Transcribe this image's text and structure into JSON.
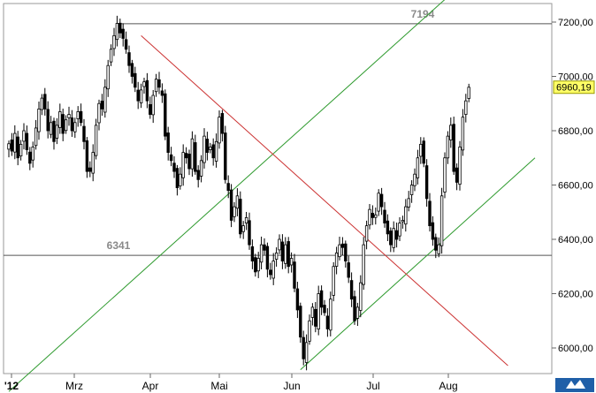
{
  "chart_data": {
    "type": "candlestick",
    "title": "",
    "xlabel": "",
    "ylabel": "",
    "ylim": [
      5920,
      7360
    ],
    "grid": false,
    "x_tick_labels": [
      "'12",
      "Mrz",
      "Apr",
      "Mai",
      "Jun",
      "Jul",
      "Aug"
    ],
    "y_ticks": [
      6000,
      6200,
      6400,
      6600,
      6800,
      7000,
      7200
    ],
    "y_tick_labels": [
      "6000,00",
      "6200,00",
      "6400,00",
      "6600,00",
      "6800,00",
      "7000,00",
      "7200,00"
    ],
    "last_price": 6960.19,
    "last_price_label": "6960,19",
    "levels": [
      {
        "value": 7194,
        "label": "7194",
        "color": "#555555"
      },
      {
        "value": 6341,
        "label": "6341",
        "color": "#555555"
      }
    ],
    "trend_lines": [
      {
        "name": "upper-uptrend",
        "color": "#2e9a2e",
        "from": [
          0,
          5840
        ],
        "to": [
          165,
          7482
        ]
      },
      {
        "name": "lower-uptrend",
        "color": "#2e9a2e",
        "from": [
          97,
          5920
        ],
        "to": [
          175,
          6700
        ]
      },
      {
        "name": "downtrend",
        "color": "#cc3333",
        "from": [
          44,
          7150
        ],
        "to": [
          166,
          5935
        ]
      }
    ],
    "closes": [
      6752,
      6725,
      6790,
      6700,
      6750,
      6800,
      6730,
      6680,
      6740,
      6810,
      6880,
      6920,
      6880,
      6800,
      6830,
      6760,
      6820,
      6870,
      6790,
      6840,
      6860,
      6800,
      6830,
      6870,
      6830,
      6760,
      6650,
      6650,
      6720,
      6820,
      6900,
      6880,
      6960,
      7040,
      7100,
      7150,
      7195,
      7160,
      7140,
      7100,
      7040,
      7000,
      6960,
      6910,
      6950,
      6980,
      6910,
      6860,
      6930,
      6990,
      6960,
      6930,
      6780,
      6720,
      6690,
      6650,
      6590,
      6640,
      6720,
      6700,
      6660,
      6770,
      6650,
      6620,
      6690,
      6780,
      6720,
      6740,
      6700,
      6760,
      6850,
      6790,
      6620,
      6580,
      6470,
      6520,
      6560,
      6420,
      6450,
      6480,
      6380,
      6320,
      6280,
      6330,
      6380,
      6360,
      6290,
      6270,
      6320,
      6350,
      6400,
      6320,
      6380,
      6300,
      6330,
      6220,
      6140,
      6040,
      5960,
      6020,
      6100,
      6150,
      6080,
      6200,
      6150,
      6130,
      6070,
      6180,
      6300,
      6350,
      6380,
      6370,
      6320,
      6260,
      6180,
      6100,
      6150,
      6240,
      6380,
      6450,
      6510,
      6480,
      6490,
      6570,
      6520,
      6460,
      6420,
      6380,
      6440,
      6400,
      6460,
      6470,
      6520,
      6550,
      6600,
      6640,
      6700,
      6750,
      6680,
      6550,
      6450,
      6400,
      6360,
      6380,
      6560,
      6700,
      6780,
      6820,
      6650,
      6610,
      6740,
      6850,
      6910,
      6960
    ]
  }
}
